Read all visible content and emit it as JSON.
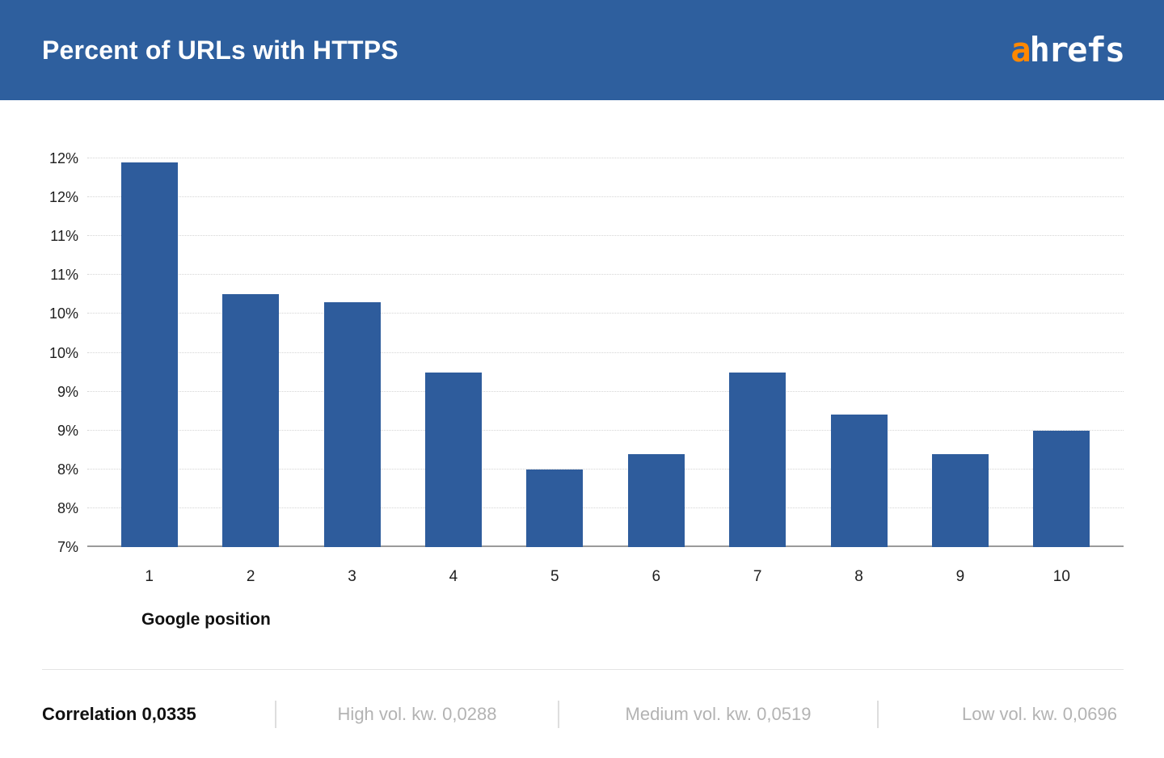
{
  "header": {
    "title": "Percent of URLs with HTTPS",
    "logo_prefix": "a",
    "logo_rest": "hrefs"
  },
  "chart_data": {
    "type": "bar",
    "title": "Percent of URLs with HTTPS",
    "categories": [
      "1",
      "2",
      "3",
      "4",
      "5",
      "6",
      "7",
      "8",
      "9",
      "10"
    ],
    "values": [
      11.95,
      10.25,
      10.15,
      9.25,
      8.0,
      8.2,
      9.25,
      8.7,
      8.2,
      8.5
    ],
    "xlabel": "Google position",
    "ylabel": "",
    "ylim": [
      7,
      12
    ],
    "ytick_step": 0.5,
    "ytick_labels_bottom_to_top": [
      "7%",
      "8%",
      "8%",
      "9%",
      "9%",
      "10%",
      "10%",
      "11%",
      "11%",
      "12%",
      "12%"
    ],
    "grid": true,
    "legend": "none",
    "bar_color": "#2e5c9c"
  },
  "footer": {
    "correlation": "Correlation 0,0335",
    "stats": [
      "High vol. kw. 0,0288",
      "Medium vol. kw. 0,0519",
      "Low vol. kw. 0,0696"
    ]
  },
  "colors": {
    "header_bg": "#2e5f9e",
    "bar": "#2e5c9c",
    "logo_accent_orange": "#ff8800",
    "logo_text_white": "#ffffff",
    "footer_muted_text": "#b3b3b3",
    "gridline": "#d5d5d5",
    "axis_line": "#9b9b9b"
  }
}
